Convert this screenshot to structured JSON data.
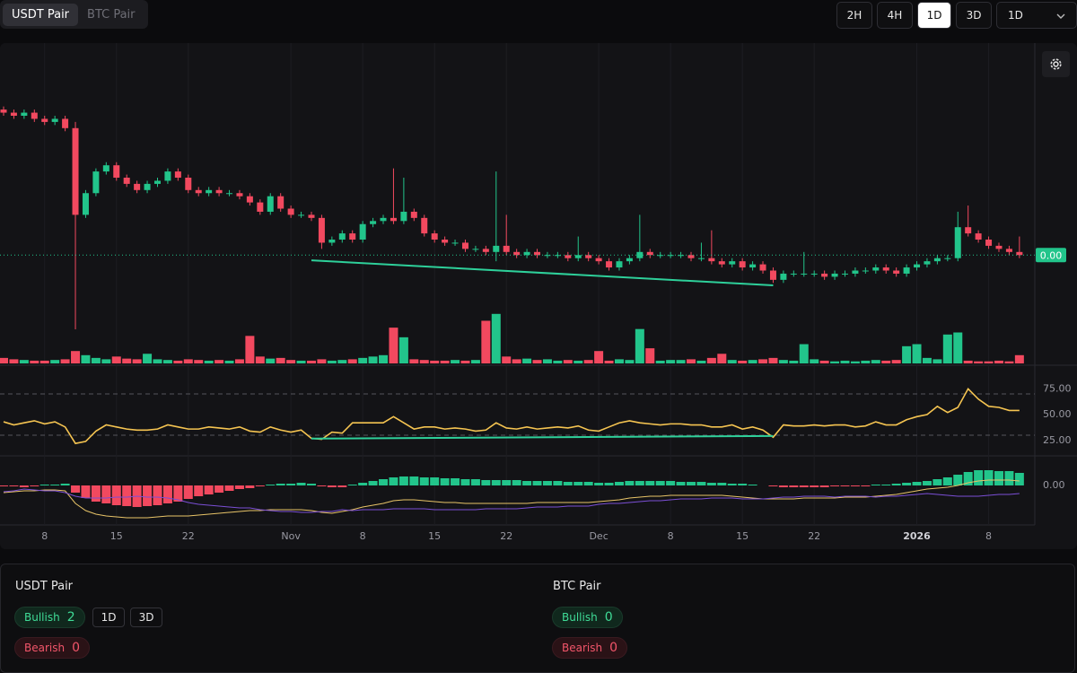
{
  "toolbar": {
    "tabs": [
      "USDT Pair",
      "BTC Pair"
    ],
    "active_tab": 0,
    "intervals": [
      "2H",
      "4H",
      "1D",
      "3D"
    ],
    "active_interval": 2,
    "select": "1D"
  },
  "chart_data": {
    "type": "candlestick",
    "up_color": "#22c58b",
    "down_color": "#f2495f",
    "xlim": [
      -0.35,
      100.5
    ],
    "xticks": [
      {
        "value": 4,
        "label": "8"
      },
      {
        "value": 11,
        "label": "15"
      },
      {
        "value": 18,
        "label": "22"
      },
      {
        "value": 28,
        "label": "Nov"
      },
      {
        "value": 35,
        "label": "8"
      },
      {
        "value": 42,
        "label": "15"
      },
      {
        "value": 49,
        "label": "22"
      },
      {
        "value": 58,
        "label": "Dec"
      },
      {
        "value": 65,
        "label": "8"
      },
      {
        "value": 72,
        "label": "15"
      },
      {
        "value": 79,
        "label": "22"
      },
      {
        "value": 89,
        "label": "2026",
        "bold": true
      },
      {
        "value": 96,
        "label": "8"
      }
    ],
    "ylim": [
      0,
      100
    ],
    "open": [
      82,
      81,
      80,
      81,
      79,
      78,
      79,
      76,
      48,
      55,
      62,
      64,
      60,
      58,
      56,
      58,
      59,
      62,
      60,
      56,
      55,
      56,
      55,
      55,
      54,
      52,
      49,
      54,
      50,
      48,
      48,
      47,
      39,
      40,
      42,
      40,
      45,
      46,
      47,
      46,
      49,
      47,
      42,
      40,
      39,
      39,
      37,
      37,
      36,
      38,
      36,
      35,
      36,
      35,
      35,
      35,
      34,
      35,
      34,
      33,
      31,
      33,
      34,
      36,
      35,
      35,
      35,
      35,
      34,
      34,
      33,
      32,
      33,
      31,
      32,
      30,
      27,
      29,
      29,
      29,
      29,
      28,
      29,
      29,
      30,
      30,
      31,
      30,
      29,
      31,
      32,
      33,
      34,
      34,
      44,
      42,
      40,
      38,
      37,
      36
    ],
    "high": [
      83,
      82,
      82,
      82,
      80,
      80,
      80,
      78,
      56,
      63,
      65,
      65,
      61,
      59,
      59,
      60,
      63,
      63,
      61,
      57,
      57,
      57,
      56,
      56,
      55,
      53,
      55,
      55,
      51,
      49,
      49,
      48,
      41,
      43,
      43,
      46,
      47,
      48,
      63,
      60,
      50,
      48,
      43,
      41,
      40,
      40,
      38,
      38,
      62,
      48,
      37,
      37,
      37,
      36,
      36,
      36,
      41,
      36,
      35,
      34,
      34,
      35,
      48,
      37,
      36,
      36,
      36,
      36,
      39,
      43,
      34,
      34,
      34,
      33,
      33,
      31,
      30,
      30,
      36,
      30,
      30,
      30,
      30,
      31,
      31,
      32,
      32,
      31,
      32,
      33,
      34,
      35,
      35,
      49,
      51,
      43,
      41,
      39,
      38,
      41
    ],
    "low": [
      80,
      79,
      79,
      78,
      77,
      77,
      75,
      11,
      47,
      54,
      61,
      59,
      57,
      55,
      55,
      57,
      58,
      59,
      55,
      54,
      54,
      54,
      54,
      53,
      51,
      48,
      48,
      49,
      47,
      47,
      46,
      37,
      38,
      39,
      39,
      39,
      44,
      45,
      45,
      45,
      46,
      41,
      39,
      38,
      38,
      36,
      36,
      35,
      33,
      35,
      34,
      34,
      34,
      34,
      34,
      33,
      33,
      33,
      32,
      30,
      30,
      32,
      33,
      34,
      34,
      34,
      34,
      33,
      33,
      32,
      31,
      31,
      30,
      30,
      29,
      26,
      26,
      28,
      28,
      28,
      27,
      27,
      28,
      28,
      29,
      29,
      29,
      28,
      28,
      30,
      31,
      32,
      33,
      33,
      41,
      39,
      37,
      36,
      35,
      34
    ],
    "close": [
      81,
      80,
      81,
      79,
      78,
      79,
      76,
      48,
      55,
      62,
      64,
      60,
      58,
      56,
      58,
      59,
      62,
      60,
      56,
      55,
      56,
      55,
      55,
      54,
      52,
      49,
      54,
      50,
      48,
      48,
      47,
      39,
      40,
      42,
      40,
      45,
      46,
      47,
      46,
      49,
      47,
      42,
      40,
      39,
      39,
      37,
      37,
      36,
      38,
      36,
      35,
      36,
      35,
      35,
      35,
      34,
      35,
      34,
      33,
      31,
      33,
      34,
      36,
      35,
      35,
      35,
      35,
      34,
      34,
      33,
      32,
      33,
      31,
      32,
      30,
      27,
      29,
      29,
      29,
      29,
      28,
      29,
      29,
      30,
      30,
      31,
      30,
      29,
      31,
      32,
      33,
      34,
      34,
      44,
      42,
      40,
      38,
      37,
      36,
      35
    ],
    "last_price": {
      "value": 35,
      "label": "0.00"
    },
    "volume_lim": [
      0,
      450
    ],
    "volume": [
      8,
      6,
      5,
      4,
      4,
      5,
      6,
      18,
      12,
      8,
      6,
      10,
      7,
      6,
      14,
      6,
      5,
      4,
      6,
      5,
      4,
      5,
      4,
      6,
      40,
      10,
      7,
      8,
      5,
      4,
      4,
      6,
      4,
      5,
      6,
      8,
      10,
      12,
      52,
      38,
      6,
      5,
      4,
      4,
      5,
      4,
      5,
      62,
      72,
      10,
      6,
      7,
      5,
      6,
      4,
      5,
      4,
      5,
      18,
      4,
      6,
      5,
      50,
      22,
      4,
      5,
      5,
      6,
      4,
      8,
      14,
      5,
      4,
      5,
      6,
      8,
      5,
      4,
      28,
      6,
      4,
      3,
      4,
      3,
      4,
      5,
      4,
      5,
      25,
      28,
      8,
      6,
      42,
      45,
      4,
      3,
      3,
      4,
      3,
      12
    ],
    "rsi_lim": [
      10,
      97
    ],
    "rsi_ticks": [
      {
        "value": 75,
        "label": "75.00"
      },
      {
        "value": 50,
        "label": "50.00"
      },
      {
        "value": 25,
        "label": "25.00"
      }
    ],
    "rsi_levels": [
      70,
      30
    ],
    "rsi_color": "#f5c451",
    "rsi": [
      43,
      40,
      42,
      44,
      41,
      43,
      38,
      22,
      24,
      34,
      40,
      38,
      36,
      35,
      35,
      36,
      40,
      38,
      36,
      36,
      38,
      37,
      36,
      38,
      34,
      33,
      38,
      35,
      33,
      35,
      27,
      26,
      33,
      32,
      42,
      42,
      42,
      42,
      48,
      42,
      36,
      38,
      38,
      36,
      37,
      36,
      34,
      35,
      42,
      37,
      36,
      38,
      36,
      37,
      38,
      37,
      39,
      35,
      34,
      38,
      42,
      44,
      42,
      41,
      40,
      41,
      41,
      40,
      40,
      38,
      38,
      40,
      36,
      38,
      35,
      28,
      40,
      39,
      39,
      40,
      39,
      40,
      40,
      38,
      39,
      43,
      40,
      40,
      45,
      48,
      50,
      58,
      52,
      57,
      75,
      65,
      58,
      57,
      54,
      54
    ],
    "divergences": [
      {
        "pane": "price",
        "color": "#2ed09a",
        "points": [
          [
            30,
            33.3
          ],
          [
            75,
            25.2
          ]
        ]
      },
      {
        "pane": "rsi",
        "color": "#2ed09a",
        "points": [
          [
            30,
            26.7
          ],
          [
            75,
            29.3
          ]
        ]
      }
    ],
    "macd_lim": [
      -44,
      31
    ],
    "macd_ticks": [
      {
        "value": 0,
        "label": "0.00"
      }
    ],
    "macd_color": "#e8c468",
    "signal_color": "#7b4fd6",
    "histogram": [
      -1,
      -1,
      -2,
      -1,
      1,
      1,
      2,
      -8,
      -14,
      -18,
      -20,
      -22,
      -23,
      -24,
      -23,
      -22,
      -20,
      -18,
      -15,
      -12,
      -10,
      -8,
      -6,
      -4,
      -3,
      -1,
      1,
      2,
      2,
      3,
      2,
      -1,
      -2,
      -2,
      1,
      3,
      5,
      7,
      9,
      10,
      10,
      9,
      9,
      8,
      8,
      7,
      7,
      6,
      6,
      6,
      6,
      5,
      5,
      5,
      5,
      4,
      4,
      4,
      3,
      3,
      4,
      5,
      5,
      5,
      5,
      5,
      4,
      4,
      4,
      3,
      3,
      2,
      2,
      1,
      0,
      -1,
      -2,
      -2,
      -2,
      -2,
      -2,
      -1,
      -1,
      -1,
      -1,
      1,
      1,
      2,
      3,
      4,
      5,
      7,
      9,
      12,
      15,
      17,
      17,
      16,
      16,
      14
    ],
    "macd": [
      -8,
      -7,
      -6,
      -6,
      -5,
      -5,
      -6,
      -20,
      -28,
      -32,
      -34,
      -35,
      -36,
      -36,
      -36,
      -35,
      -34,
      -34,
      -34,
      -33,
      -32,
      -31,
      -30,
      -29,
      -28,
      -28,
      -27,
      -27,
      -27,
      -27,
      -28,
      -30,
      -31,
      -29,
      -27,
      -24,
      -22,
      -20,
      -17,
      -16,
      -16,
      -17,
      -18,
      -19,
      -19,
      -20,
      -20,
      -20,
      -20,
      -20,
      -20,
      -20,
      -19,
      -19,
      -19,
      -19,
      -19,
      -19,
      -18,
      -17,
      -16,
      -14,
      -13,
      -12,
      -12,
      -11,
      -11,
      -11,
      -11,
      -11,
      -11,
      -12,
      -13,
      -14,
      -15,
      -15,
      -15,
      -15,
      -14,
      -14,
      -14,
      -14,
      -13,
      -13,
      -13,
      -12,
      -11,
      -10,
      -8,
      -6,
      -4,
      -3,
      -2,
      0,
      3,
      5,
      6,
      6,
      6,
      5
    ],
    "signal": [
      -7,
      -6,
      -4,
      -5,
      -6,
      -6,
      -8,
      -12,
      -14,
      -14,
      -14,
      -13,
      -13,
      -12,
      -13,
      -13,
      -14,
      -16,
      -19,
      -21,
      -22,
      -23,
      -24,
      -25,
      -25,
      -27,
      -28,
      -29,
      -29,
      -30,
      -30,
      -29,
      -29,
      -27,
      -28,
      -27,
      -27,
      -27,
      -26,
      -26,
      -26,
      -26,
      -27,
      -27,
      -27,
      -27,
      -27,
      -26,
      -26,
      -26,
      -26,
      -25,
      -24,
      -24,
      -24,
      -23,
      -23,
      -23,
      -21,
      -20,
      -20,
      -19,
      -18,
      -17,
      -17,
      -16,
      -15,
      -15,
      -15,
      -14,
      -14,
      -14,
      -15,
      -15,
      -15,
      -14,
      -13,
      -13,
      -12,
      -12,
      -12,
      -13,
      -12,
      -12,
      -12,
      -13,
      -12,
      -12,
      -11,
      -10,
      -9,
      -10,
      -11,
      -12,
      -12,
      -12,
      -11,
      -10,
      -10,
      -9
    ]
  },
  "summary": [
    {
      "title": "USDT Pair",
      "bullish_label": "Bullish",
      "bullish": 2,
      "bearish_label": "Bearish",
      "bearish": 0,
      "timeframes": [
        "1D",
        "3D"
      ]
    },
    {
      "title": "BTC Pair",
      "bullish_label": "Bullish",
      "bullish": 0,
      "bearish_label": "Bearish",
      "bearish": 0
    }
  ]
}
